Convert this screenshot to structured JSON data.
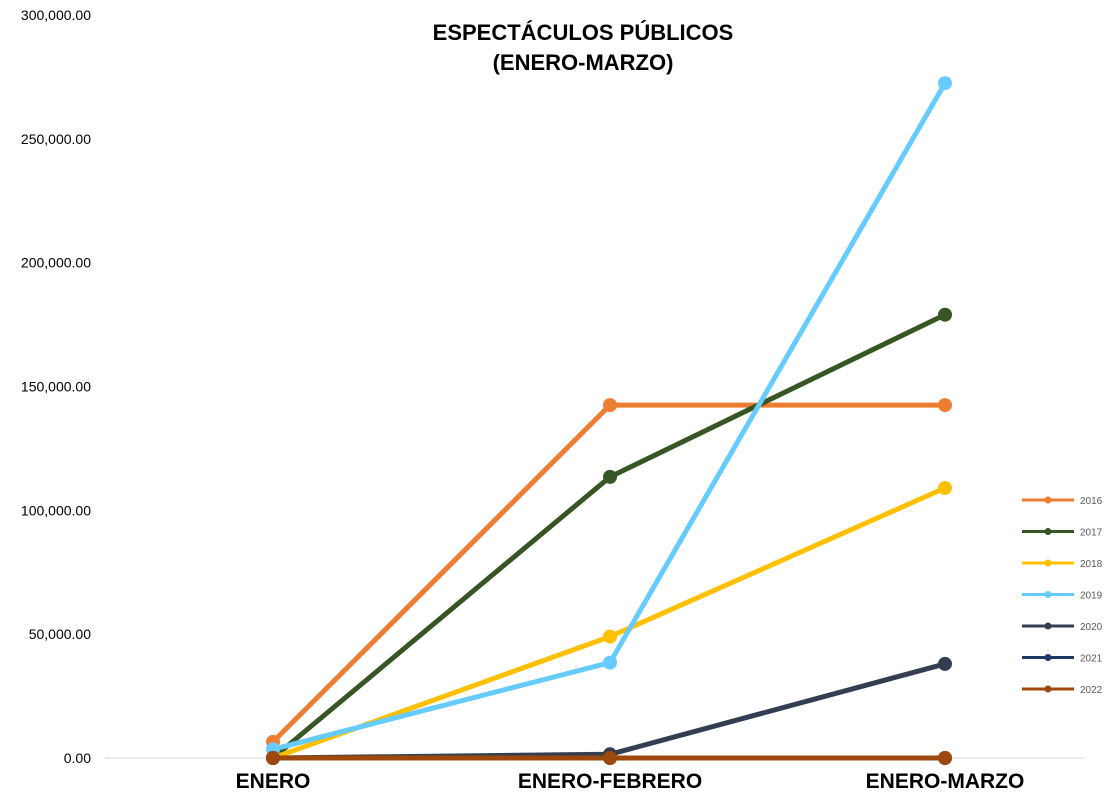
{
  "chart_data": {
    "type": "line",
    "title_lines": [
      "ESPECTÁCULOS PÚBLICOS",
      "(ENERO-MARZO)"
    ],
    "xlabel": "",
    "ylabel": "",
    "categories": [
      "ENERO",
      "ENERO-FEBRERO",
      "ENERO-MARZO"
    ],
    "ylim": [
      0,
      300000
    ],
    "yticks": [
      0,
      50000,
      100000,
      150000,
      200000,
      250000,
      300000
    ],
    "ytick_labels": [
      "0.00",
      "50,000.00",
      "100,000.00",
      "150,000.00",
      "200,000.00",
      "250,000.00",
      "300,000.00"
    ],
    "grid": false,
    "legend_position": "right",
    "series": [
      {
        "name": "2016",
        "color": "#ED7D31",
        "values": [
          6500,
          142500,
          142500
        ]
      },
      {
        "name": "2017",
        "color": "#375623",
        "values": [
          0,
          113500,
          179000
        ]
      },
      {
        "name": "2018",
        "color": "#FFC000",
        "values": [
          0,
          49000,
          109000
        ]
      },
      {
        "name": "2019",
        "color": "#66CCFF",
        "values": [
          3500,
          38500,
          272500
        ]
      },
      {
        "name": "2020",
        "color": "#333F50",
        "values": [
          0,
          1500,
          38000
        ]
      },
      {
        "name": "2021",
        "color": "#1F3864",
        "values": [
          0,
          0,
          0
        ]
      },
      {
        "name": "2022",
        "color": "#9E480E",
        "values": [
          0,
          0,
          0
        ]
      }
    ]
  }
}
